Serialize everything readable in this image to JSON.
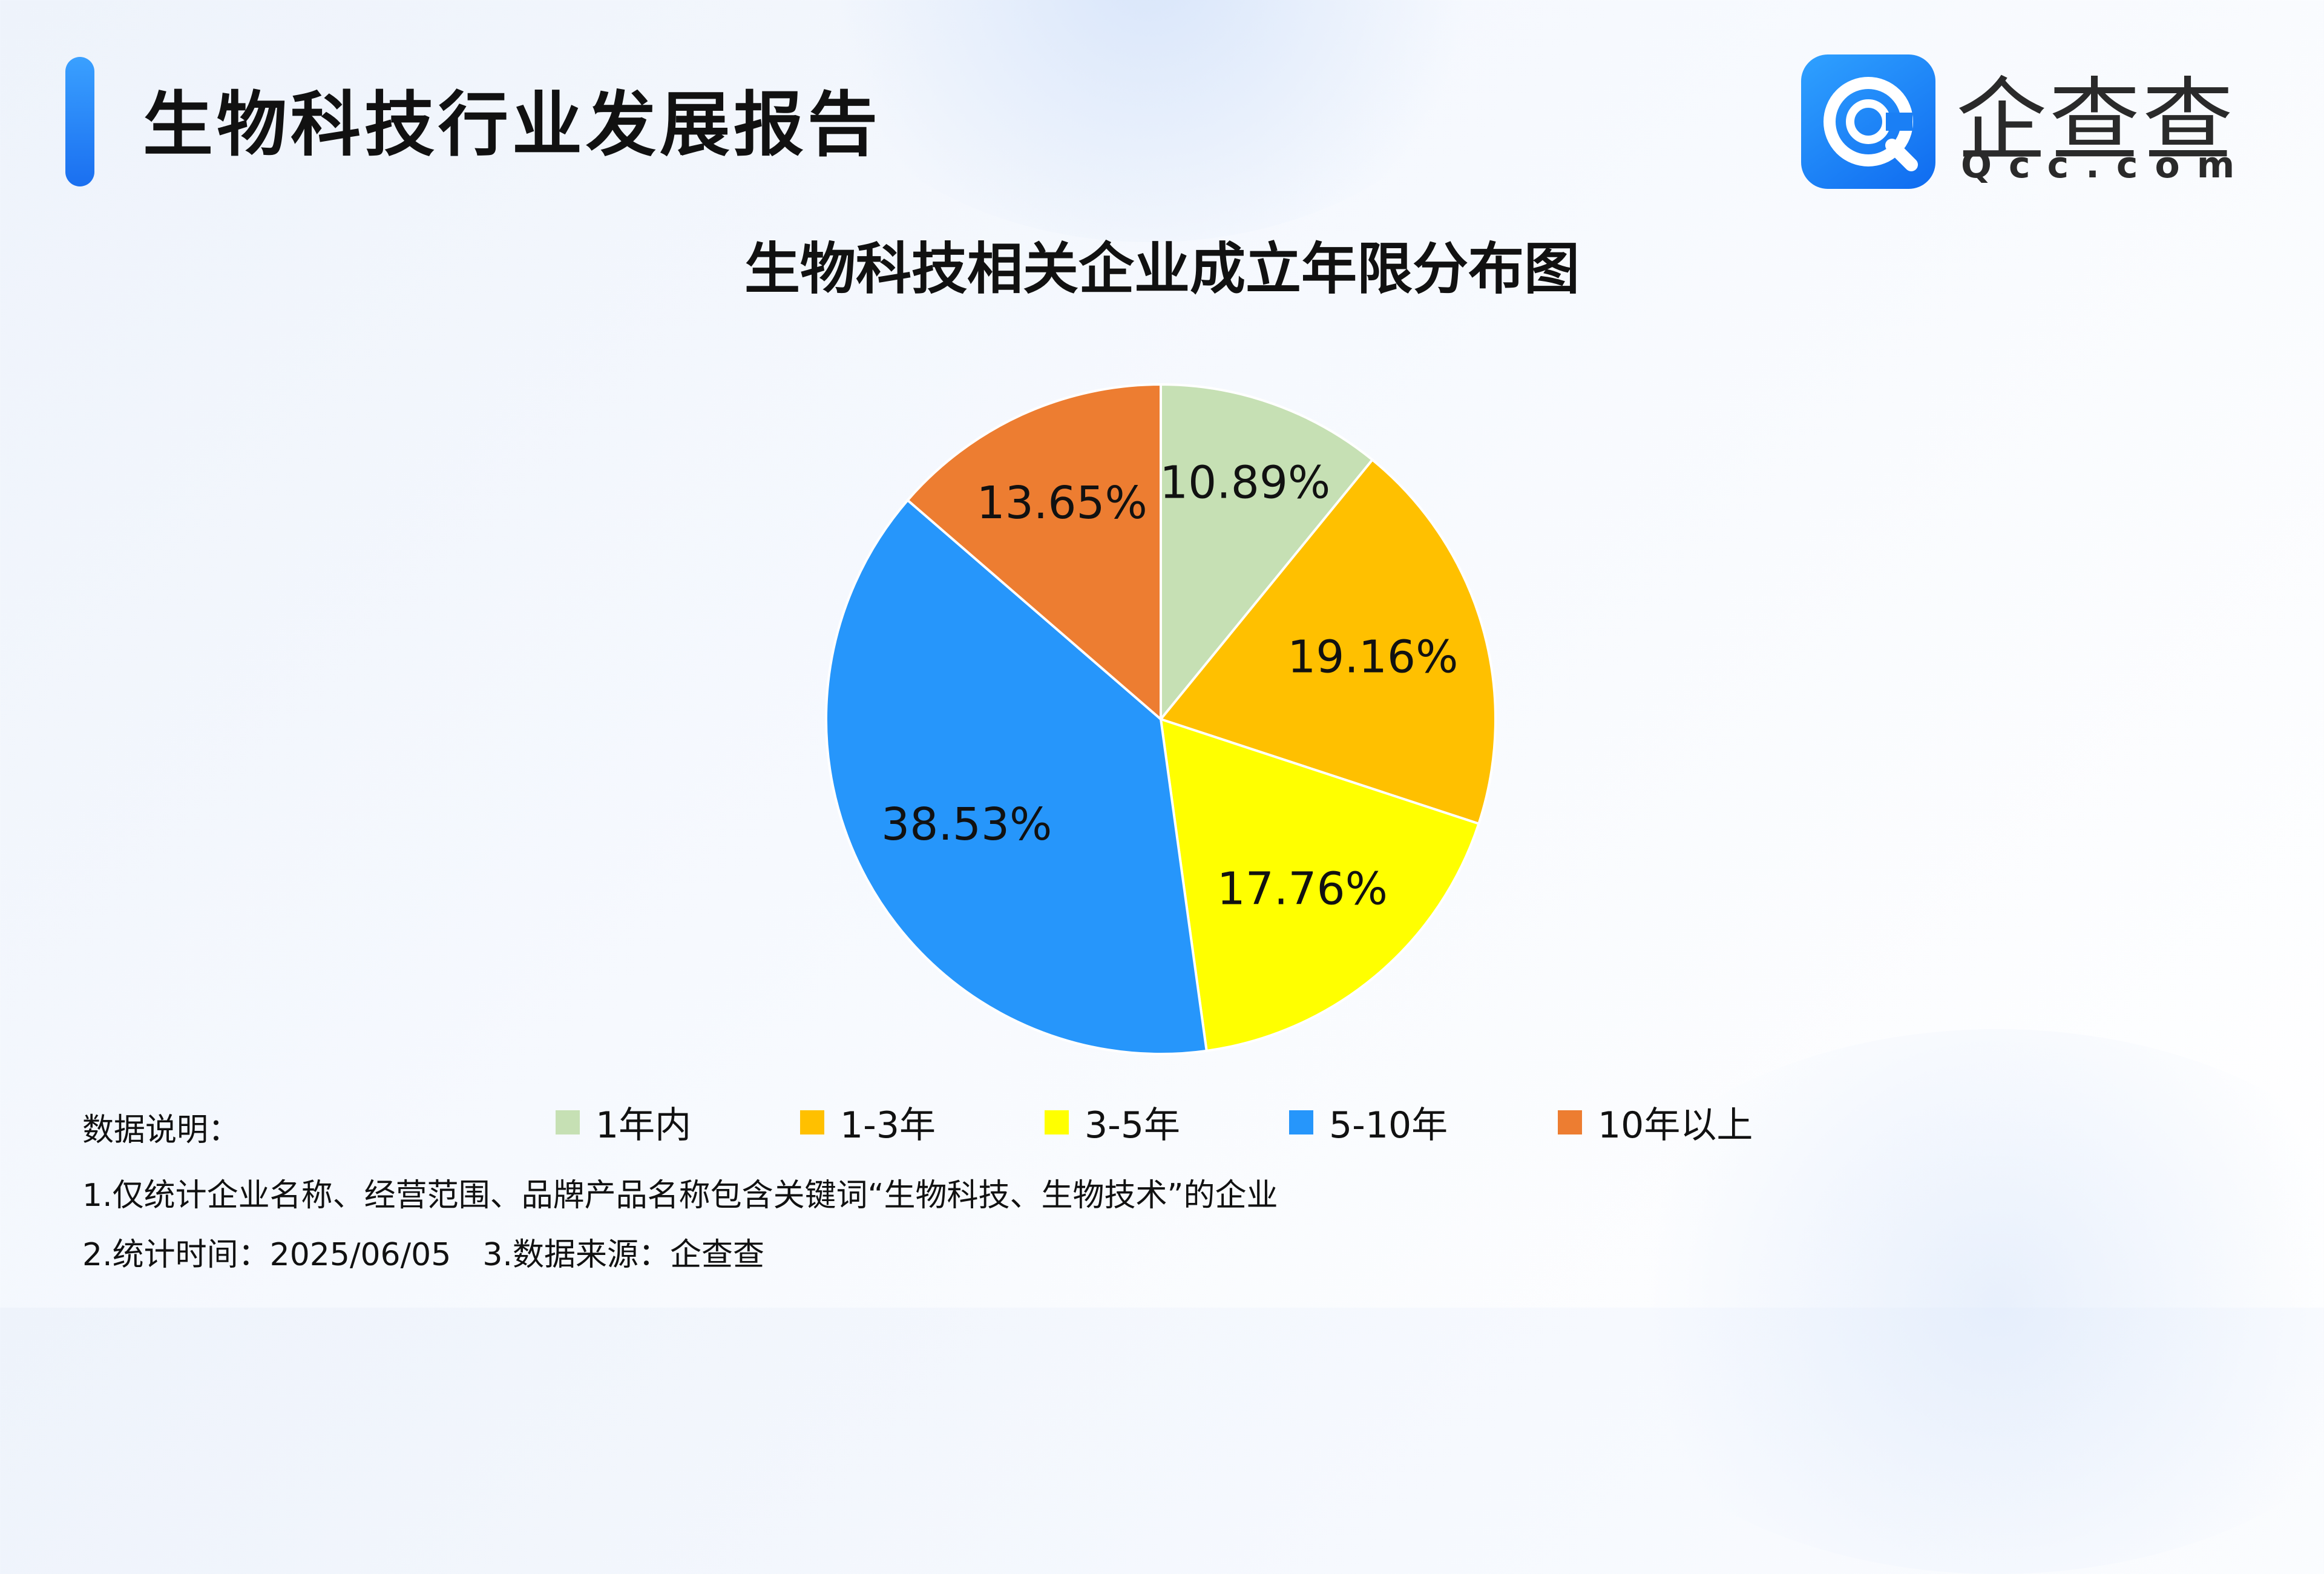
{
  "header": {
    "report_title": "生物科技行业发展报告",
    "brand_cn": "企查查",
    "brand_en": "Qcc.com",
    "logo_icon": "qcc-logo-icon",
    "accent_color": "#1a7cff"
  },
  "chart_data": {
    "type": "pie",
    "title": "生物科技相关企业成立年限分布图",
    "categories": [
      "1年内",
      "1-3年",
      "3-5年",
      "5-10年",
      "10年以上"
    ],
    "values": [
      10.89,
      19.16,
      17.76,
      38.53,
      13.65
    ],
    "labels": [
      "10.89%",
      "19.16%",
      "17.76%",
      "38.53%",
      "13.65%"
    ],
    "colors": [
      "#c6e0b4",
      "#ffc000",
      "#ffff00",
      "#2696fb",
      "#ed7d31"
    ],
    "start_angle": "12 o'clock",
    "direction": "clockwise",
    "legend_position": "bottom"
  },
  "notes": {
    "heading": "数据说明：",
    "line1": "1.仅统计企业名称、经营范围、品牌产品名称包含关键词“生物科技、生物技术”的企业",
    "line2": "2.统计时间：2025/06/05　3.数据来源：企查查"
  }
}
